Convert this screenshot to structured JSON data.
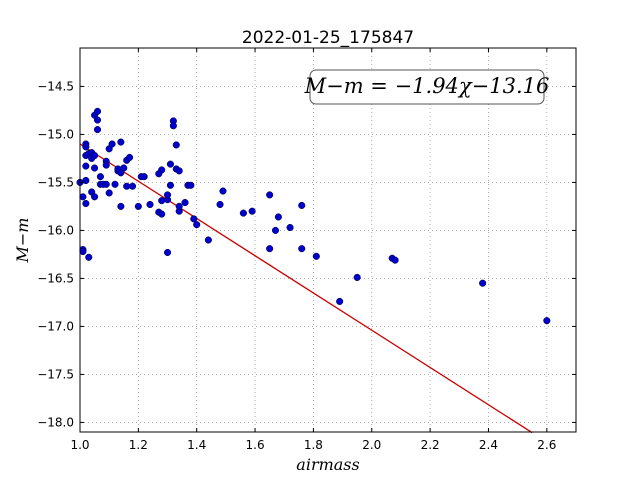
{
  "chart_data": {
    "type": "scatter",
    "title": "2022-01-25_175847",
    "xlabel": "airmass",
    "ylabel": "M−m",
    "xlim": [
      1.0,
      2.7
    ],
    "ylim": [
      -18.1,
      -14.1
    ],
    "xticks": [
      1.0,
      1.2,
      1.4,
      1.6,
      1.8,
      2.0,
      2.2,
      2.4,
      2.6
    ],
    "xtick_labels": [
      "1.0",
      "1.2",
      "1.4",
      "1.6",
      "1.8",
      "2.0",
      "2.2",
      "2.4",
      "2.6"
    ],
    "yticks": [
      -14.5,
      -15.0,
      -15.5,
      -16.0,
      -16.5,
      -17.0,
      -17.5,
      -18.0
    ],
    "ytick_labels": [
      "−14.5",
      "−15.0",
      "−15.5",
      "−16.0",
      "−16.5",
      "−17.0",
      "−17.5",
      "−18.0"
    ],
    "grid": true,
    "annotation": "M−m = −1.94χ−13.16",
    "colors": {
      "points": "#0000cc",
      "fit_line": "#cc0000",
      "axes": "#000000",
      "grid": "#9a9a9a"
    },
    "fit": {
      "slope": -1.94,
      "intercept": -13.16,
      "x_range": [
        1.0,
        2.55
      ]
    },
    "points": [
      [
        1.0,
        -15.5
      ],
      [
        1.01,
        -16.2
      ],
      [
        1.01,
        -16.22
      ],
      [
        1.01,
        -15.65
      ],
      [
        1.02,
        -15.1
      ],
      [
        1.02,
        -15.13
      ],
      [
        1.02,
        -15.22
      ],
      [
        1.02,
        -15.48
      ],
      [
        1.02,
        -15.72
      ],
      [
        1.02,
        -15.33
      ],
      [
        1.03,
        -16.28
      ],
      [
        1.03,
        -15.2
      ],
      [
        1.04,
        -15.19
      ],
      [
        1.04,
        -15.25
      ],
      [
        1.04,
        -15.6
      ],
      [
        1.05,
        -15.65
      ],
      [
        1.05,
        -15.35
      ],
      [
        1.05,
        -15.22
      ],
      [
        1.05,
        -14.8
      ],
      [
        1.06,
        -14.76
      ],
      [
        1.06,
        -14.85
      ],
      [
        1.06,
        -14.95
      ],
      [
        1.07,
        -15.44
      ],
      [
        1.07,
        -15.52
      ],
      [
        1.08,
        -15.52
      ],
      [
        1.09,
        -15.28
      ],
      [
        1.09,
        -15.32
      ],
      [
        1.09,
        -15.52
      ],
      [
        1.1,
        -15.61
      ],
      [
        1.1,
        -15.15
      ],
      [
        1.11,
        -15.1
      ],
      [
        1.12,
        -15.52
      ],
      [
        1.13,
        -15.38
      ],
      [
        1.13,
        -15.36
      ],
      [
        1.14,
        -15.4
      ],
      [
        1.14,
        -15.75
      ],
      [
        1.14,
        -15.08
      ],
      [
        1.15,
        -15.35
      ],
      [
        1.16,
        -15.27
      ],
      [
        1.16,
        -15.54
      ],
      [
        1.17,
        -15.24
      ],
      [
        1.18,
        -15.54
      ],
      [
        1.2,
        -15.75
      ],
      [
        1.21,
        -15.44
      ],
      [
        1.22,
        -15.44
      ],
      [
        1.24,
        -15.73
      ],
      [
        1.27,
        -15.81
      ],
      [
        1.27,
        -15.41
      ],
      [
        1.28,
        -15.37
      ],
      [
        1.28,
        -15.69
      ],
      [
        1.28,
        -15.83
      ],
      [
        1.3,
        -15.68
      ],
      [
        1.3,
        -16.23
      ],
      [
        1.3,
        -15.63
      ],
      [
        1.31,
        -15.53
      ],
      [
        1.31,
        -15.31
      ],
      [
        1.32,
        -14.86
      ],
      [
        1.32,
        -14.91
      ],
      [
        1.33,
        -15.36
      ],
      [
        1.33,
        -15.11
      ],
      [
        1.34,
        -15.8
      ],
      [
        1.34,
        -15.75
      ],
      [
        1.34,
        -15.38
      ],
      [
        1.36,
        -15.71
      ],
      [
        1.37,
        -15.53
      ],
      [
        1.38,
        -15.53
      ],
      [
        1.39,
        -15.88
      ],
      [
        1.4,
        -15.94
      ],
      [
        1.44,
        -16.1
      ],
      [
        1.48,
        -15.73
      ],
      [
        1.49,
        -15.59
      ],
      [
        1.56,
        -15.82
      ],
      [
        1.59,
        -15.8
      ],
      [
        1.65,
        -16.19
      ],
      [
        1.65,
        -15.63
      ],
      [
        1.67,
        -16.0
      ],
      [
        1.68,
        -15.86
      ],
      [
        1.72,
        -15.97
      ],
      [
        1.76,
        -16.19
      ],
      [
        1.76,
        -15.74
      ],
      [
        1.81,
        -16.27
      ],
      [
        1.89,
        -16.74
      ],
      [
        1.95,
        -16.49
      ],
      [
        2.07,
        -16.29
      ],
      [
        2.08,
        -16.31
      ],
      [
        2.38,
        -16.55
      ],
      [
        2.6,
        -16.94
      ]
    ]
  }
}
